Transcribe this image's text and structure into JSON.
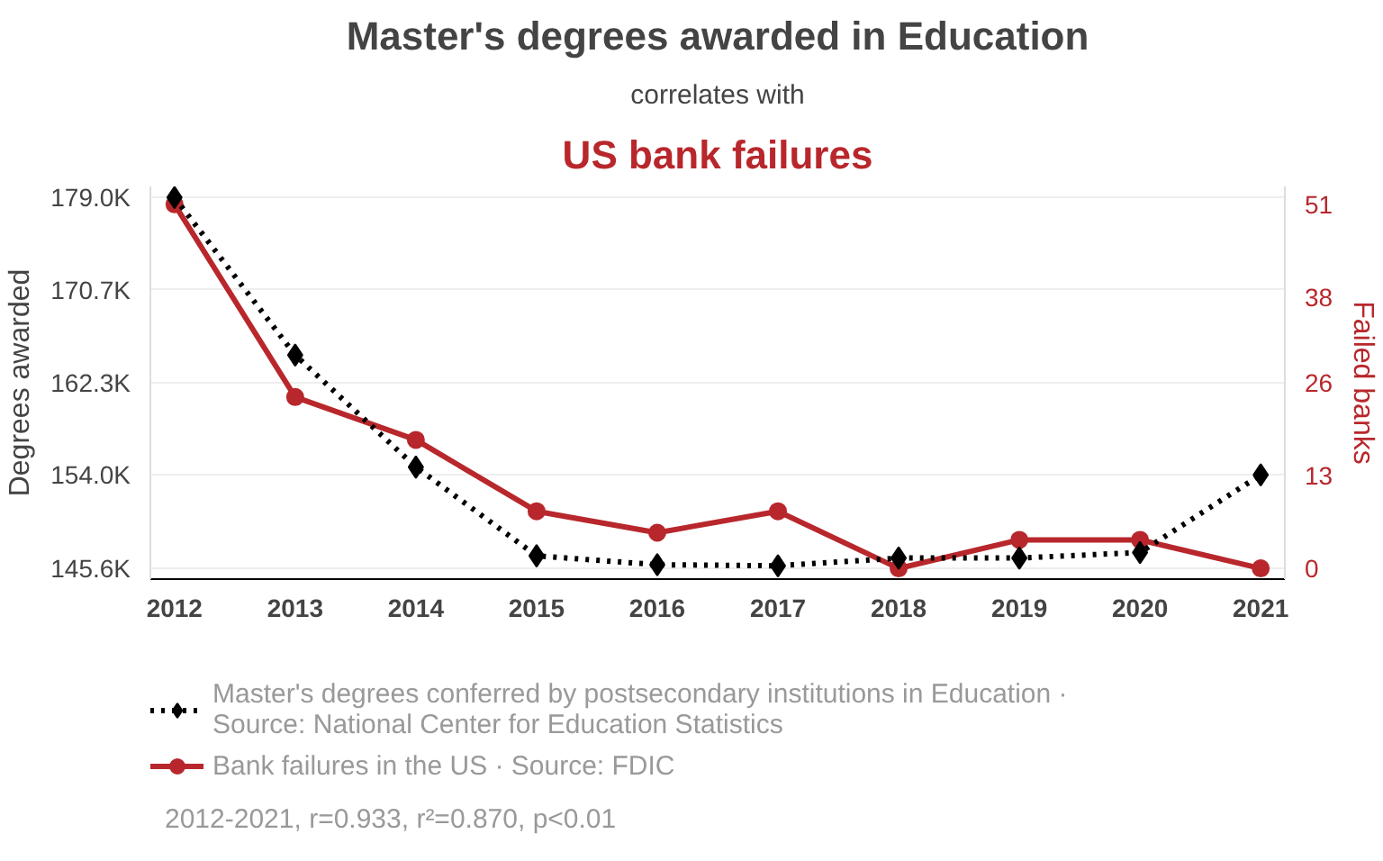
{
  "chart_data": {
    "type": "line",
    "title": "Master's degrees awarded in Education",
    "subtitle": "correlates with",
    "annotations": [
      "US bank failures",
      "2012-2021, r=0.933, r²=0.870, p<0.01"
    ],
    "ylabel": "Degrees awarded",
    "y2label": "Failed banks",
    "x": [
      2012,
      2013,
      2014,
      2015,
      2016,
      2017,
      2018,
      2019,
      2020,
      2021
    ],
    "xlim": [
      2011.8,
      2021.2
    ],
    "xticks": [
      2012,
      2013,
      2014,
      2015,
      2016,
      2017,
      2018,
      2019,
      2020,
      2021
    ],
    "ylim": [
      144.6,
      180.0
    ],
    "yticks": [
      {
        "value": 145.6,
        "label": "145.6K"
      },
      {
        "value": 154.0,
        "label": "154.0K"
      },
      {
        "value": 162.3,
        "label": "162.3K"
      },
      {
        "value": 170.7,
        "label": "170.7K"
      },
      {
        "value": 179.0,
        "label": "179.0K"
      }
    ],
    "y2lim": [
      -1.5,
      53.5
    ],
    "y2ticks": [
      0,
      13,
      26,
      38,
      51
    ],
    "grid": "y",
    "legend": "bottom",
    "series": [
      {
        "name": "Master's degrees conferred by postsecondary institutions in Education ·\nSource: National Center for Education Statistics",
        "color": "#000000",
        "marker": "diamond",
        "line_style": "dotted",
        "values": [
          179.0,
          164.8,
          154.7,
          146.7,
          145.9,
          145.8,
          146.5,
          146.5,
          147.0,
          154.0
        ]
      },
      {
        "name": "Bank failures in the US · Source: FDIC",
        "color": "#b8272c",
        "marker": "circle",
        "line_style": "solid",
        "axis": "y2",
        "values": [
          51,
          24,
          18,
          8,
          5,
          8,
          0,
          4,
          4,
          0
        ]
      }
    ]
  }
}
